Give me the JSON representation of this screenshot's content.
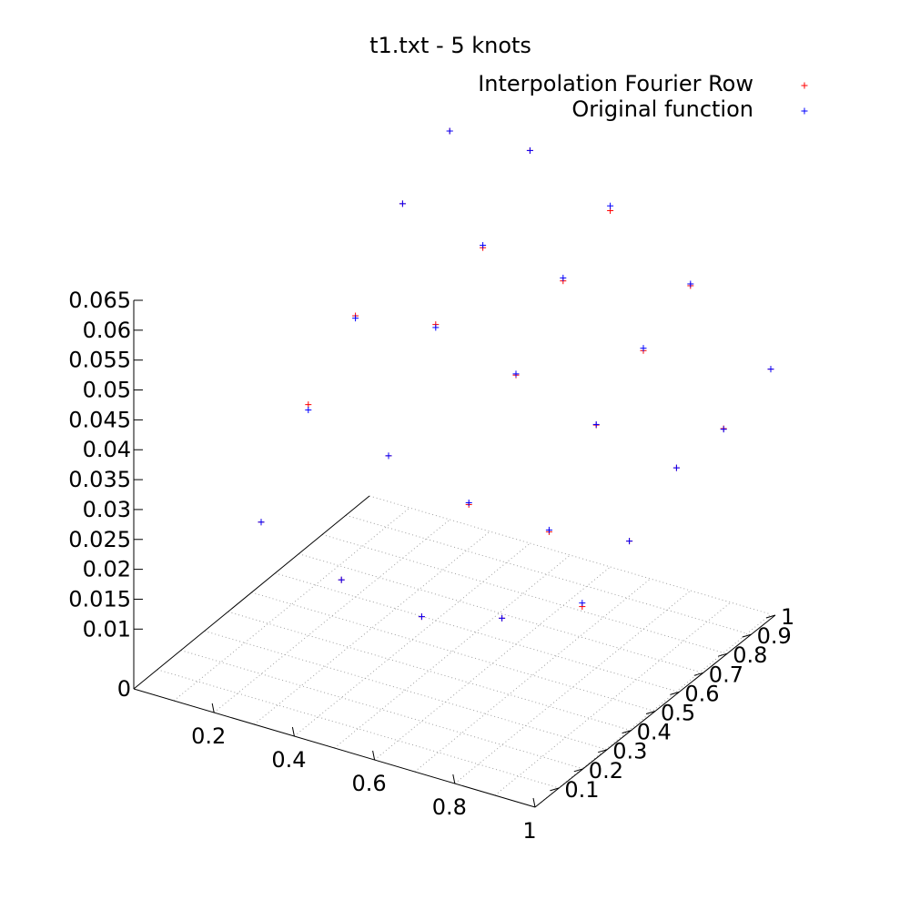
{
  "chart_data": {
    "type": "scatter",
    "title": "t1.txt - 5 knots",
    "legend_placement": "top-right",
    "grid": true,
    "colors": {
      "interpolation": "#ff0000",
      "original": "#0000ff",
      "axis": "#000000",
      "grid": "#a0a0a0"
    },
    "xlim": [
      0,
      1
    ],
    "ylim": [
      0,
      1
    ],
    "zlim": [
      0,
      0.065
    ],
    "x_tick_labels": [
      "0.2",
      "0.4",
      "0.6",
      "0.8",
      "1"
    ],
    "x_ticks": [
      0.2,
      0.4,
      0.6,
      0.8,
      1
    ],
    "y_tick_labels": [
      "0.1",
      "0.2",
      "0.3",
      "0.4",
      "0.5",
      "0.6",
      "0.7",
      "0.8",
      "0.9",
      "1"
    ],
    "y_ticks": [
      0.1,
      0.2,
      0.3,
      0.4,
      0.5,
      0.6,
      0.7,
      0.8,
      0.9,
      1
    ],
    "z_tick_labels": [
      "0",
      "0.01",
      "0.015",
      "0.02",
      "0.025",
      "0.03",
      "0.035",
      "0.04",
      "0.045",
      "0.05",
      "0.055",
      "0.06",
      "0.065"
    ],
    "z_ticks": [
      0,
      0.01,
      0.015,
      0.02,
      0.025,
      0.03,
      0.035,
      0.04,
      0.045,
      0.05,
      0.055,
      0.06,
      0.065
    ],
    "series": [
      {
        "name": "Interpolation Fourier Row",
        "points": [
          [
            0.2,
            0.2,
            0.0254
          ],
          [
            0.2,
            0.4,
            0.0386
          ],
          [
            0.2,
            0.6,
            0.047
          ],
          [
            0.2,
            0.8,
            0.0593
          ],
          [
            0.2,
            1.0,
            0.065
          ],
          [
            0.4,
            0.2,
            0.0197
          ],
          [
            0.4,
            0.4,
            0.034
          ],
          [
            0.4,
            0.6,
            0.0495
          ],
          [
            0.4,
            0.8,
            0.0559
          ],
          [
            0.4,
            1.0,
            0.0657
          ],
          [
            0.6,
            0.2,
            0.0175
          ],
          [
            0.6,
            0.4,
            0.0298
          ],
          [
            0.6,
            0.6,
            0.045
          ],
          [
            0.6,
            0.8,
            0.0543
          ],
          [
            0.6,
            1.0,
            0.0596
          ],
          [
            0.8,
            0.2,
            0.0212
          ],
          [
            0.8,
            0.4,
            0.0292
          ],
          [
            0.8,
            0.6,
            0.0406
          ],
          [
            0.8,
            0.8,
            0.0466
          ],
          [
            0.8,
            1.0,
            0.051
          ],
          [
            1.0,
            0.2,
            0.0271
          ],
          [
            1.0,
            0.4,
            0.0316
          ],
          [
            1.0,
            0.6,
            0.0374
          ],
          [
            1.0,
            0.8,
            0.0375
          ],
          [
            1.0,
            1.0,
            0.041
          ]
        ]
      },
      {
        "name": "Original function",
        "points": [
          [
            0.2,
            0.2,
            0.0254
          ],
          [
            0.2,
            0.4,
            0.0377
          ],
          [
            0.2,
            0.6,
            0.0466
          ],
          [
            0.2,
            0.8,
            0.0593
          ],
          [
            0.2,
            1.0,
            0.065
          ],
          [
            0.4,
            0.2,
            0.0197
          ],
          [
            0.4,
            0.4,
            0.034
          ],
          [
            0.4,
            0.6,
            0.049
          ],
          [
            0.4,
            0.8,
            0.0563
          ],
          [
            0.4,
            1.0,
            0.0657
          ],
          [
            0.6,
            0.2,
            0.0175
          ],
          [
            0.6,
            0.4,
            0.0301
          ],
          [
            0.6,
            0.6,
            0.0452
          ],
          [
            0.6,
            0.8,
            0.0548
          ],
          [
            0.6,
            1.0,
            0.0604
          ],
          [
            0.8,
            0.2,
            0.0212
          ],
          [
            0.8,
            0.4,
            0.0295
          ],
          [
            0.8,
            0.6,
            0.0407
          ],
          [
            0.8,
            0.8,
            0.047
          ],
          [
            0.8,
            1.0,
            0.0513
          ],
          [
            1.0,
            0.2,
            0.0277
          ],
          [
            1.0,
            0.4,
            0.0316
          ],
          [
            1.0,
            0.6,
            0.0374
          ],
          [
            1.0,
            0.8,
            0.0374
          ],
          [
            1.0,
            1.0,
            0.041
          ]
        ]
      }
    ]
  }
}
